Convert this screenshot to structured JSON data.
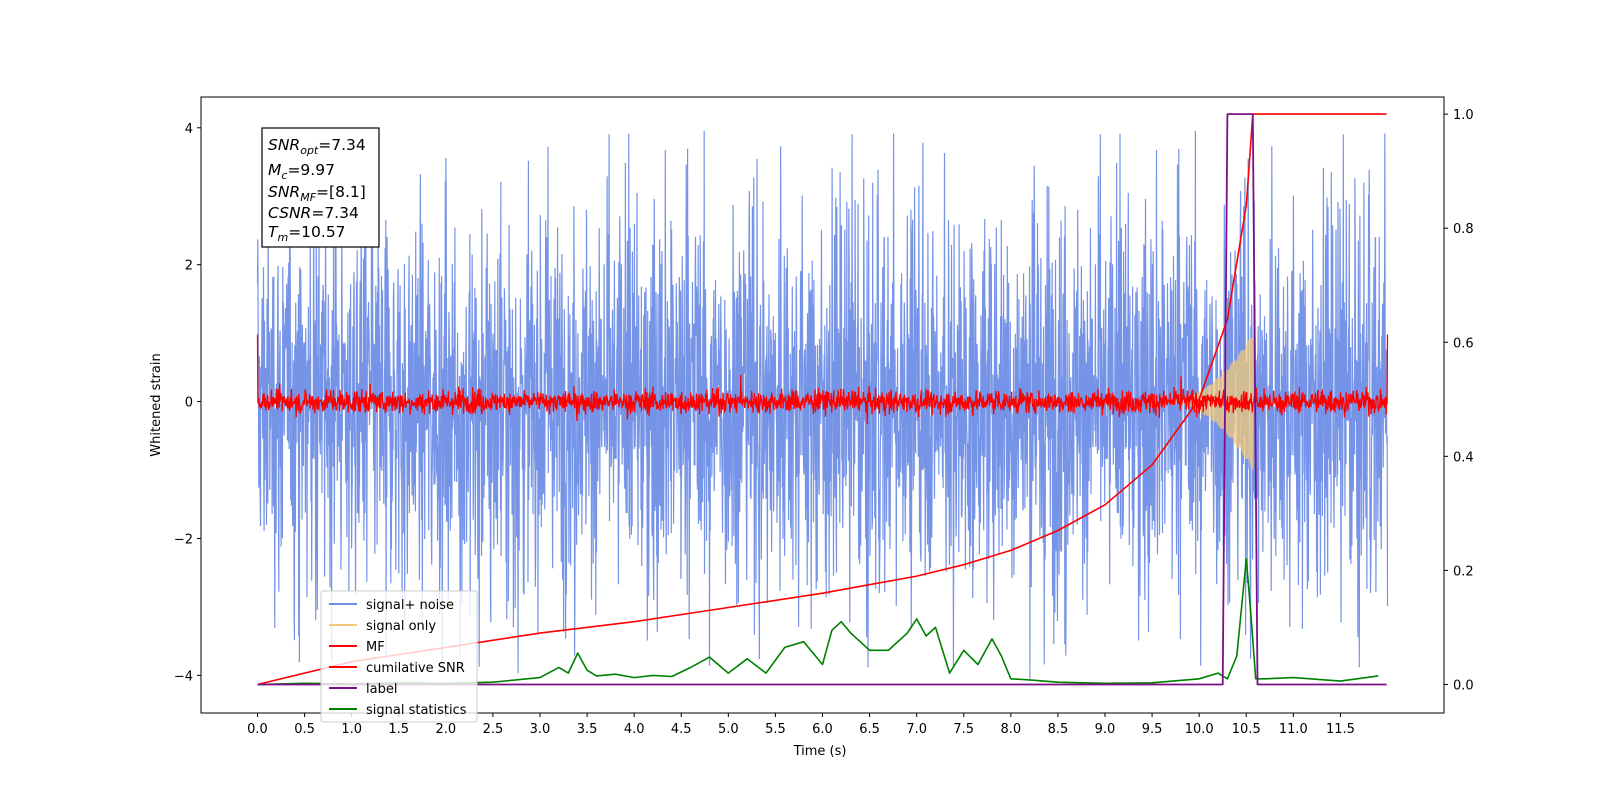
{
  "chart_data": {
    "type": "line",
    "xlabel": "Time (s)",
    "ylabel": "Whitened strain",
    "xlim": [
      -0.6,
      12.6
    ],
    "ylim": [
      -4.55,
      4.45
    ],
    "y2lim": [
      -0.05,
      1.03
    ],
    "xticks": [
      "0.0",
      "0.5",
      "1.0",
      "1.5",
      "2.0",
      "2.5",
      "3.0",
      "3.5",
      "4.0",
      "4.5",
      "5.0",
      "5.5",
      "6.0",
      "6.5",
      "7.0",
      "7.5",
      "8.0",
      "8.5",
      "9.0",
      "9.5",
      "10.0",
      "10.5",
      "11.0",
      "11.5"
    ],
    "yticks": [
      "−4",
      "−2",
      "0",
      "2",
      "4"
    ],
    "y2ticks": [
      "0.0",
      "0.2",
      "0.4",
      "0.6",
      "0.8",
      "1.0"
    ],
    "grid": false,
    "legend_position": "lower-left",
    "annotation": {
      "snr_opt": {
        "sym": "SNR",
        "sub": "opt",
        "val": "=7.34"
      },
      "mc": {
        "sym": "M",
        "sub": "c",
        "val": "=9.97"
      },
      "snr_mf": {
        "sym": "SNR",
        "sub": "MF",
        "val": "=[8.1]"
      },
      "csnr": {
        "sym": "CSNR",
        "sub": "",
        "val": "=7.34"
      },
      "tm": {
        "sym": "T",
        "sub": "m",
        "val": "=10.57"
      }
    },
    "series": [
      {
        "name": "signal+ noise",
        "color": "#6f8ee6",
        "axis": "left",
        "description_values": {
          "x_range": [
            0,
            12
          ],
          "amplitude_typical": 1.3,
          "amplitude_max": 4.05
        }
      },
      {
        "name": "signal only",
        "color": "#f2c97a",
        "axis": "left",
        "chirp": {
          "start_time": 9.6,
          "peak_time": 10.57,
          "peak_amplitude": 1.0
        }
      },
      {
        "name": "MF",
        "color": "#ff0000",
        "axis": "left",
        "noise_amplitude": 0.12,
        "end_spike": 0.98
      },
      {
        "name": "cumilative SNR",
        "color": "#ff0000",
        "axis": "right",
        "x": [
          0.0,
          1.0,
          2.0,
          3.0,
          4.0,
          5.0,
          6.0,
          7.0,
          7.5,
          8.0,
          8.5,
          9.0,
          9.5,
          10.0,
          10.3,
          10.5,
          10.57,
          11.99
        ],
        "y": [
          0.0,
          0.04,
          0.065,
          0.09,
          0.11,
          0.135,
          0.16,
          0.19,
          0.21,
          0.235,
          0.27,
          0.315,
          0.385,
          0.5,
          0.64,
          0.84,
          1.0,
          1.0
        ]
      },
      {
        "name": "label",
        "color": "#7b0f86",
        "axis": "right",
        "x": [
          0.0,
          10.25,
          10.3,
          10.57,
          10.62,
          11.99
        ],
        "y": [
          0.0,
          0.0,
          1.0,
          1.0,
          0.0,
          0.0
        ]
      },
      {
        "name": "signal statistics",
        "color": "#008000",
        "axis": "right",
        "x": [
          0.0,
          0.5,
          1.0,
          1.5,
          2.0,
          2.5,
          3.0,
          3.2,
          3.3,
          3.4,
          3.5,
          3.6,
          3.8,
          4.0,
          4.2,
          4.4,
          4.6,
          4.8,
          5.0,
          5.2,
          5.4,
          5.6,
          5.8,
          6.0,
          6.1,
          6.2,
          6.3,
          6.5,
          6.7,
          6.9,
          7.0,
          7.1,
          7.2,
          7.35,
          7.5,
          7.65,
          7.8,
          7.9,
          8.0,
          8.2,
          8.5,
          9.0,
          9.5,
          10.0,
          10.2,
          10.3,
          10.4,
          10.5,
          10.55,
          10.6,
          10.7,
          11.0,
          11.5,
          11.9
        ],
        "y": [
          0.0,
          0.002,
          0.001,
          0.003,
          0.002,
          0.004,
          0.012,
          0.03,
          0.02,
          0.055,
          0.025,
          0.015,
          0.018,
          0.012,
          0.016,
          0.014,
          0.03,
          0.048,
          0.02,
          0.045,
          0.02,
          0.065,
          0.075,
          0.035,
          0.095,
          0.11,
          0.09,
          0.06,
          0.06,
          0.09,
          0.115,
          0.085,
          0.1,
          0.02,
          0.06,
          0.035,
          0.08,
          0.05,
          0.01,
          0.008,
          0.004,
          0.002,
          0.003,
          0.01,
          0.02,
          0.01,
          0.05,
          0.22,
          0.12,
          0.01,
          0.01,
          0.012,
          0.006,
          0.015
        ]
      }
    ]
  }
}
